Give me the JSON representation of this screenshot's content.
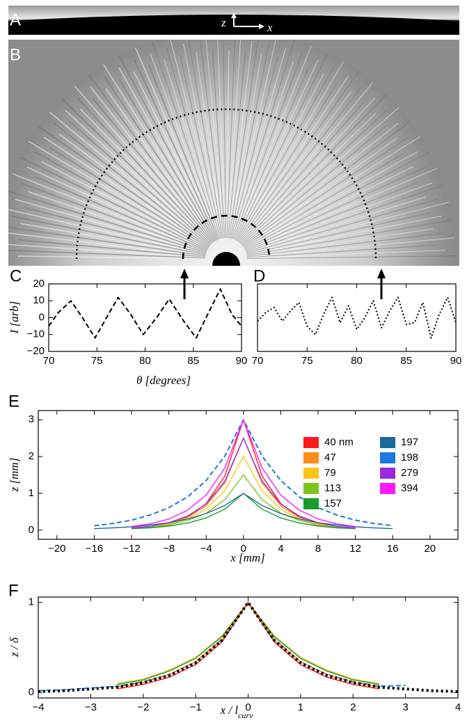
{
  "panel_a": {
    "letter": "A",
    "axis_z": "z",
    "axis_x": "x"
  },
  "panel_b": {
    "letter": "B"
  },
  "chart_data": [
    {
      "type": "line",
      "panel": "C",
      "ylabel": "I [arb]",
      "xlabel": "θ [degrees]",
      "xlim": [
        70,
        90
      ],
      "xticks": [
        70,
        75,
        80,
        85,
        90
      ],
      "ylim": [
        -20,
        20
      ],
      "yticks": [
        {
          "value": -20,
          "label": "−20"
        },
        {
          "value": -10,
          "label": "−10"
        },
        0,
        10,
        20
      ],
      "x": [
        70,
        71,
        72.3,
        73.5,
        74.8,
        76,
        77.2,
        78.5,
        79.8,
        81.2,
        82.5,
        84,
        85.3,
        86.5,
        87.8,
        89,
        90
      ],
      "series": [
        {
          "color": "#000000",
          "line_style": "dashed",
          "values": [
            -5,
            3,
            10,
            0,
            -12,
            0,
            12,
            2,
            -10,
            0,
            11,
            -2,
            -12,
            2,
            17,
            2,
            -5
          ]
        }
      ]
    },
    {
      "type": "line",
      "panel": "D",
      "xlim": [
        70,
        90
      ],
      "xticks": [
        70,
        75,
        80,
        85,
        90
      ],
      "ylim": [
        -20,
        20
      ],
      "x": [
        70,
        70.83,
        71.67,
        72.5,
        73.33,
        74.17,
        75,
        75.83,
        76.67,
        77.5,
        78.33,
        79.17,
        80,
        80.83,
        81.67,
        82.5,
        83.33,
        84.17,
        85,
        85.83,
        86.67,
        87.5,
        88.33,
        89.17,
        90
      ],
      "series": [
        {
          "color": "#000000",
          "line_style": "dotted",
          "values": [
            -2,
            3,
            6,
            -2,
            4,
            9,
            -5,
            -10,
            2,
            12,
            -3,
            7,
            -7,
            0,
            10,
            -6,
            4,
            12,
            -4,
            -3,
            9,
            -12,
            2,
            12,
            -3
          ]
        }
      ]
    },
    {
      "type": "line",
      "panel": "E",
      "ylabel": "z [mm]",
      "xlabel": "x [mm]",
      "legend": "upper right",
      "xlim": [
        -22,
        23
      ],
      "xticks": [
        {
          "value": -20,
          "label": "−20"
        },
        {
          "value": -16,
          "label": "−16"
        },
        {
          "value": -12,
          "label": "−12"
        },
        {
          "value": -8,
          "label": "−8"
        },
        {
          "value": -4,
          "label": "−4"
        },
        0,
        4,
        8,
        12,
        16,
        20
      ],
      "ylim": [
        -0.25,
        3.25
      ],
      "yticks": [
        0,
        1,
        2,
        3
      ],
      "x": [
        -16,
        -14,
        -12,
        -10,
        -8,
        -6,
        -4,
        -2,
        0,
        2,
        4,
        6,
        8,
        10,
        12,
        14,
        16
      ],
      "series": [
        {
          "name": "40 nm",
          "color": "#ff1a1a",
          "values": [
            null,
            null,
            0.04,
            0.08,
            0.17,
            0.35,
            0.72,
            1.47,
            3,
            1.47,
            0.72,
            0.35,
            0.17,
            0.08,
            0.04,
            null,
            null
          ]
        },
        {
          "name": "47",
          "color": "#ff8c1a",
          "values": [
            null,
            null,
            0.05,
            0.09,
            0.17,
            0.34,
            0.66,
            1.28,
            2.5,
            1.28,
            0.66,
            0.34,
            0.17,
            0.09,
            0.05,
            null,
            null
          ]
        },
        {
          "name": "79",
          "color": "#ffc61a",
          "values": [
            null,
            null,
            0.05,
            0.09,
            0.16,
            0.3,
            0.57,
            1.07,
            2,
            1.07,
            0.57,
            0.3,
            0.16,
            0.09,
            0.05,
            null,
            null
          ]
        },
        {
          "name": "113",
          "color": "#7fc41a",
          "values": [
            null,
            null,
            0.05,
            0.08,
            0.14,
            0.26,
            0.46,
            0.83,
            1.5,
            0.83,
            0.46,
            0.26,
            0.14,
            0.08,
            0.05,
            null,
            null
          ]
        },
        {
          "name": "157",
          "color": "#1a9a2a",
          "values": [
            null,
            null,
            0.04,
            0.06,
            0.11,
            0.19,
            0.33,
            0.57,
            1,
            0.57,
            0.33,
            0.19,
            0.11,
            0.06,
            0.04,
            null,
            null
          ]
        },
        {
          "name": "197",
          "color": "#1a6a99",
          "values": [
            0.04,
            0.06,
            0.09,
            0.14,
            0.2,
            0.3,
            0.45,
            0.67,
            1,
            0.67,
            0.45,
            0.3,
            0.2,
            0.14,
            0.09,
            0.06,
            0.04
          ]
        },
        {
          "name": "198",
          "color": "#1a78e0",
          "line_style": "dashed",
          "values": [
            0.12,
            0.18,
            0.27,
            0.41,
            0.61,
            0.9,
            1.35,
            2.01,
            3,
            2.01,
            1.35,
            0.9,
            0.61,
            0.41,
            0.27,
            0.18,
            0.12
          ]
        },
        {
          "name": "279",
          "color": "#9a2ae0",
          "values": [
            null,
            null,
            0.06,
            0.1,
            0.2,
            0.38,
            0.71,
            1.33,
            2.5,
            1.33,
            0.71,
            0.38,
            0.2,
            0.1,
            0.06,
            null,
            null
          ]
        },
        {
          "name": "394",
          "color": "#ff1aff",
          "values": [
            null,
            null,
            0.1,
            0.17,
            0.3,
            0.54,
            0.95,
            1.69,
            3,
            1.69,
            0.95,
            0.54,
            0.3,
            0.17,
            0.1,
            null,
            null
          ]
        }
      ]
    },
    {
      "type": "line",
      "panel": "F",
      "ylabel": "z / δ",
      "xlabel": "x / l",
      "xlabel_sub": "curv",
      "xlim": [
        -4,
        4
      ],
      "xticks": [
        {
          "value": -4,
          "label": "−4"
        },
        {
          "value": -3,
          "label": "−3"
        },
        {
          "value": -2,
          "label": "−2"
        },
        {
          "value": -1,
          "label": "−1"
        },
        0,
        1,
        2,
        3,
        4
      ],
      "ylim": [
        -0.06,
        1.06
      ],
      "yticks": [
        0,
        1
      ],
      "x": [
        -4,
        -3.5,
        -3,
        -2.5,
        -2,
        -1.5,
        -1,
        -0.5,
        0,
        0.5,
        1,
        1.5,
        2,
        2.5,
        3,
        3.5,
        4
      ],
      "series": [
        {
          "color": "#1a78e0",
          "line_style": "dashed",
          "values": [
            0.02,
            0.03,
            0.05,
            0.07,
            0.12,
            0.2,
            0.34,
            0.59,
            1,
            0.59,
            0.34,
            0.2,
            0.12,
            0.07,
            0.08,
            null,
            null
          ]
        },
        {
          "color": "#ffc61a",
          "values": [
            null,
            null,
            null,
            0.1,
            0.15,
            0.25,
            0.39,
            0.63,
            1,
            0.63,
            0.39,
            0.25,
            0.15,
            0.1,
            null,
            null,
            null
          ]
        },
        {
          "color": "#1a9a2a",
          "values": [
            null,
            null,
            null,
            0.09,
            0.14,
            0.24,
            0.38,
            0.62,
            1,
            0.62,
            0.38,
            0.24,
            0.14,
            0.09,
            null,
            null,
            null
          ]
        },
        {
          "color": "#ff8c1a",
          "values": [
            null,
            null,
            null,
            0.06,
            0.11,
            0.2,
            0.34,
            0.58,
            1,
            0.58,
            0.34,
            0.2,
            0.11,
            0.06,
            null,
            null,
            null
          ]
        },
        {
          "color": "#ff1a1a",
          "values": [
            null,
            null,
            null,
            0.04,
            0.09,
            0.17,
            0.31,
            0.56,
            1,
            0.56,
            0.31,
            0.17,
            0.09,
            0.04,
            null,
            null,
            null
          ]
        },
        {
          "color": "#000000",
          "line_style": "dotted-thick",
          "values": [
            0.01,
            0.02,
            0.04,
            0.06,
            0.11,
            0.19,
            0.33,
            0.58,
            1,
            0.58,
            0.33,
            0.19,
            0.11,
            0.06,
            0.04,
            0.02,
            0.01
          ]
        }
      ]
    }
  ]
}
